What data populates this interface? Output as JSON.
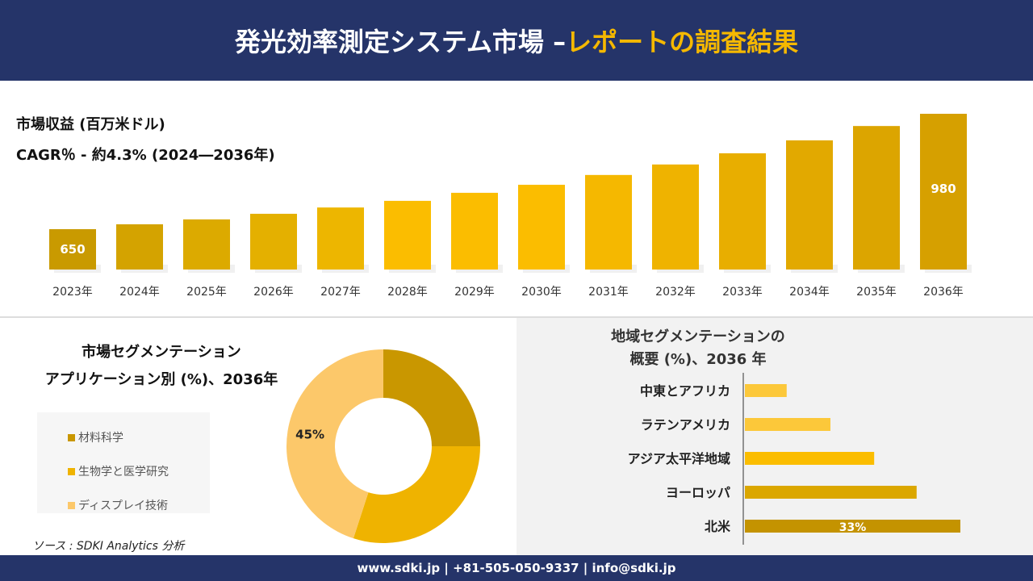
{
  "header": {
    "title": "発光効率測定システム市場 –",
    "title_accent": "レポートの調査結果"
  },
  "revenue": {
    "title": "市場収益 (百万米ドル)",
    "cagr": "CAGR％ - 約4.3% (2024―2036年)"
  },
  "segment": {
    "title1": "市場セグメンテーション",
    "title2": "アプリケーション別 (%)、2036年"
  },
  "region": {
    "title1": "地域セグメンテーションの",
    "title2": "概要 (%)、2036 年"
  },
  "source": "ソース : SDKI Analytics 分析",
  "footer": "www.sdki.jp | +81-505-050-9337 | info@sdki.jp",
  "chart_data": [
    {
      "type": "bar",
      "categories": [
        "2023年",
        "2024年",
        "2025年",
        "2026年",
        "2027年",
        "2028年",
        "2029年",
        "2030年",
        "2031年",
        "2032年",
        "2033年",
        "2034年",
        "2035年",
        "2036年"
      ],
      "values": [
        650,
        664,
        678,
        694,
        712,
        731,
        754,
        777,
        805,
        835,
        867,
        904,
        945,
        980
      ],
      "data_labels": {
        "2023年": "650",
        "2036年": "980"
      },
      "colors": [
        "#c99a00",
        "#d4a300",
        "#dcaa00",
        "#e4b000",
        "#edb600",
        "#fbbd00",
        "#fbbd00",
        "#fbbd00",
        "#f5b800",
        "#efb300",
        "#e8ae00",
        "#e2a900",
        "#dca500",
        "#d6a000"
      ]
    },
    {
      "type": "pie",
      "donut": true,
      "categories": [
        "材料科学",
        "生物学と医学研究",
        "ディスプレイ技術"
      ],
      "values": [
        25,
        30,
        45
      ],
      "colors": [
        "#c99700",
        "#efb300",
        "#fcc86a"
      ],
      "data_labels": {
        "ディスプレイ技術": "45%"
      }
    },
    {
      "type": "bar",
      "orientation": "horizontal",
      "categories": [
        "中東とアフリカ",
        "ラテンアメリカ",
        "アジア太平洋地域",
        "ヨーロッパ",
        "北米"
      ],
      "values": [
        6.4,
        13.1,
        19.8,
        26.3,
        33
      ],
      "colors": [
        "#fcc83a",
        "#fcc83a",
        "#fbbd00",
        "#dba700",
        "#c49300"
      ],
      "data_labels": {
        "北米": "33%"
      }
    }
  ]
}
